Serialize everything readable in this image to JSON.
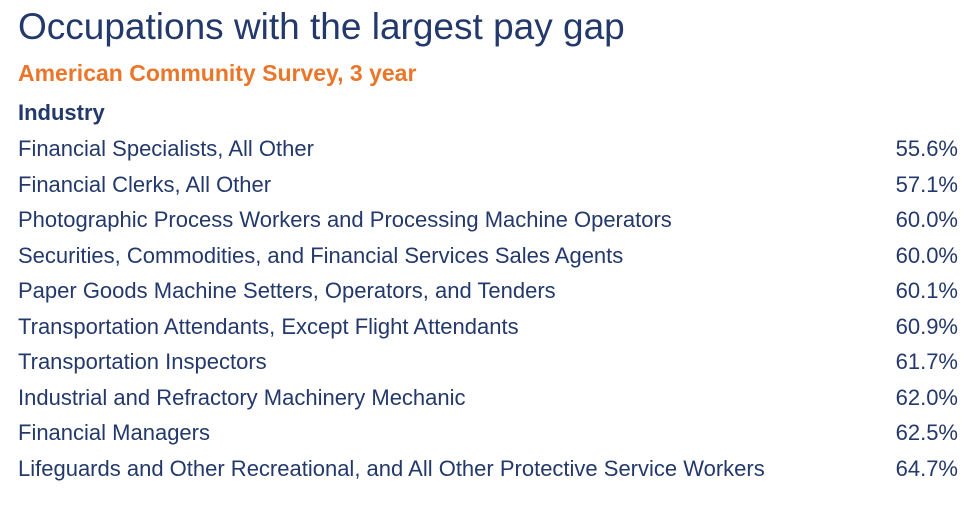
{
  "header": {
    "title": "Occupations with the largest pay gap",
    "subtitle": "American Community Survey, 3 year"
  },
  "table": {
    "column_header": "Industry",
    "rows": [
      [
        "Financial Specialists, All Other",
        "55.6%"
      ],
      [
        "Financial Clerks, All Other",
        "57.1%"
      ],
      [
        "Photographic Process Workers and Processing Machine Operators",
        "60.0%"
      ],
      [
        "Securities, Commodities, and Financial Services Sales Agents",
        "60.0%"
      ],
      [
        "Paper Goods Machine Setters, Operators, and Tenders",
        "60.1%"
      ],
      [
        "Transportation Attendants, Except Flight Attendants",
        "60.9%"
      ],
      [
        "Transportation Inspectors",
        "61.7%"
      ],
      [
        "Industrial and Refractory Machinery Mechanic",
        "62.0%"
      ],
      [
        "Financial Managers",
        "62.5%"
      ],
      [
        "Lifeguards and Other Recreational, and All Other Protective Service Workers",
        "64.7%"
      ]
    ]
  }
}
